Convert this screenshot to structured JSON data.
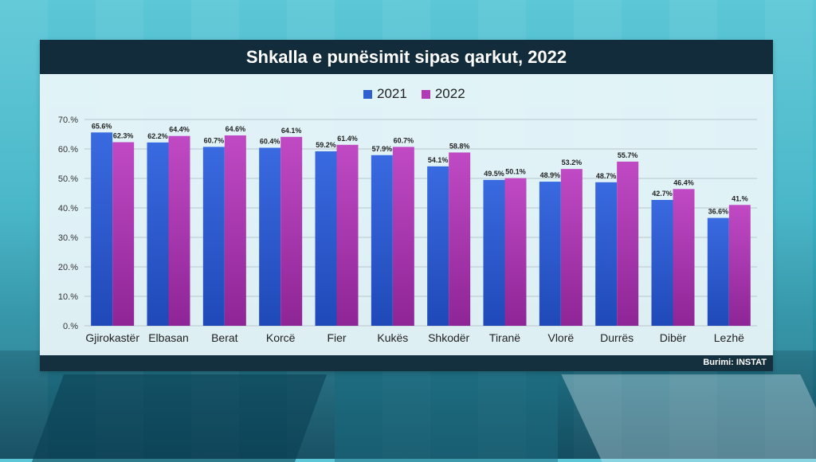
{
  "title": "Shkalla e punësimit sipas qarkut, 2022",
  "source": "Burimi: INSTAT",
  "colors": {
    "s2021": "#2f5fd0",
    "s2022": "#b23ab5",
    "title_bg": "#122c3b"
  },
  "chart_data": {
    "type": "bar",
    "title": "Shkalla e punësimit sipas qarkut, 2022",
    "categories": [
      "Gjirokastër",
      "Elbasan",
      "Berat",
      "Korcë",
      "Fier",
      "Kukës",
      "Shkodër",
      "Tiranë",
      "Vlorë",
      "Durrës",
      "Dibër",
      "Lezhë"
    ],
    "series": [
      {
        "name": "2021",
        "values": [
          65.6,
          62.2,
          60.7,
          60.4,
          59.2,
          57.9,
          54.1,
          49.5,
          48.9,
          48.7,
          42.7,
          36.6
        ],
        "labels": [
          "65.6%",
          "62.2%",
          "60.7%",
          "60.4%",
          "59.2%",
          "57.9%",
          "54.1%",
          "49.5%",
          "48.9%",
          "48.7%",
          "42.7%",
          "36.6%"
        ]
      },
      {
        "name": "2022",
        "values": [
          62.3,
          64.4,
          64.6,
          64.1,
          61.4,
          60.7,
          58.8,
          50.1,
          53.2,
          55.7,
          46.4,
          41.0
        ],
        "labels": [
          "62.3%",
          "64.4%",
          "64.6%",
          "64.1%",
          "61.4%",
          "60.7%",
          "58.8%",
          "50.1%",
          "53.2%",
          "55.7%",
          "46.4%",
          "41.%"
        ]
      }
    ],
    "ylim": [
      0,
      70
    ],
    "yticks": [
      "0.%",
      "10.%",
      "20.%",
      "30.%",
      "40.%",
      "50.%",
      "60.%",
      "70.%"
    ],
    "grid": true,
    "legend": "top-center"
  }
}
